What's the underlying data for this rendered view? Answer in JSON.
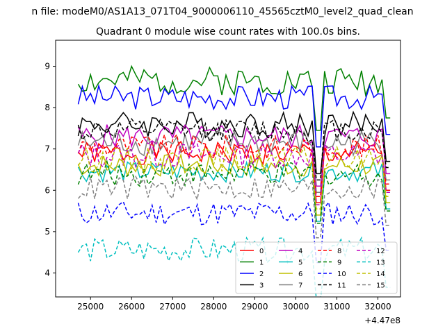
{
  "figure": {
    "suptitle": "n file: modeM0/AS1A13_071T04_9000006110_45565cztM0_level2_quad_clean",
    "title": "Quadrant 0 module wise count rates with 100.0s bins."
  },
  "chart_data": {
    "type": "line",
    "title": "Quadrant 0 module wise count rates with 100.0s bins.",
    "xlabel": "",
    "ylabel": "",
    "x_offset_label": "+4.47e8",
    "xlim": [
      24150,
      32550
    ],
    "ylim": [
      3.42,
      9.63
    ],
    "xticks": [
      25000,
      26000,
      27000,
      28000,
      29000,
      30000,
      31000,
      32000
    ],
    "xtick_labels": [
      "25000",
      "26000",
      "27000",
      "28000",
      "29000",
      "30000",
      "31000",
      "32000"
    ],
    "yticks": [
      4,
      5,
      6,
      7,
      8,
      9
    ],
    "ytick_labels": [
      "4",
      "5",
      "6",
      "7",
      "8",
      "9"
    ],
    "grid": false,
    "legend": {
      "placement": "lower-right",
      "columns": 4
    },
    "time_range": {
      "start": 24700,
      "end": 32300,
      "bin_width_s": 100,
      "gap_near": 30550
    },
    "series": [
      {
        "name": "0",
        "color": "#ff0000",
        "dash": "solid",
        "level": 6.9,
        "amp": 0.28,
        "seed": 1
      },
      {
        "name": "1",
        "color": "#008000",
        "dash": "solid",
        "level": 8.65,
        "amp": 0.35,
        "seed": 2
      },
      {
        "name": "2",
        "color": "#0000ff",
        "dash": "solid",
        "level": 8.25,
        "amp": 0.3,
        "seed": 3
      },
      {
        "name": "3",
        "color": "#000000",
        "dash": "solid",
        "level": 7.6,
        "amp": 0.32,
        "seed": 4
      },
      {
        "name": "4",
        "color": "#bf00bf",
        "dash": "solid",
        "level": 7.3,
        "amp": 0.3,
        "seed": 5
      },
      {
        "name": "5",
        "color": "#00bfbf",
        "dash": "solid",
        "level": 6.45,
        "amp": 0.25,
        "seed": 6
      },
      {
        "name": "6",
        "color": "#bfbf00",
        "dash": "solid",
        "level": 6.6,
        "amp": 0.28,
        "seed": 7
      },
      {
        "name": "7",
        "color": "#808080",
        "dash": "solid",
        "level": 7.15,
        "amp": 0.32,
        "seed": 8
      },
      {
        "name": "8",
        "color": "#ff0000",
        "dash": "dashed",
        "level": 7.05,
        "amp": 0.3,
        "seed": 9
      },
      {
        "name": "9",
        "color": "#008000",
        "dash": "dashed",
        "level": 6.4,
        "amp": 0.3,
        "seed": 10
      },
      {
        "name": "10",
        "color": "#0000ff",
        "dash": "dashed",
        "level": 5.45,
        "amp": 0.3,
        "seed": 11
      },
      {
        "name": "11",
        "color": "#000000",
        "dash": "dashed",
        "level": 7.45,
        "amp": 0.28,
        "seed": 12
      },
      {
        "name": "12",
        "color": "#bf00bf",
        "dash": "dashed",
        "level": 6.85,
        "amp": 0.32,
        "seed": 13
      },
      {
        "name": "13",
        "color": "#00bfbf",
        "dash": "dashed",
        "level": 4.55,
        "amp": 0.3,
        "seed": 14
      },
      {
        "name": "14",
        "color": "#bfbf00",
        "dash": "dashed",
        "level": 6.75,
        "amp": 0.3,
        "seed": 15
      },
      {
        "name": "15",
        "color": "#808080",
        "dash": "dashed",
        "level": 6.05,
        "amp": 0.3,
        "seed": 16
      }
    ]
  }
}
